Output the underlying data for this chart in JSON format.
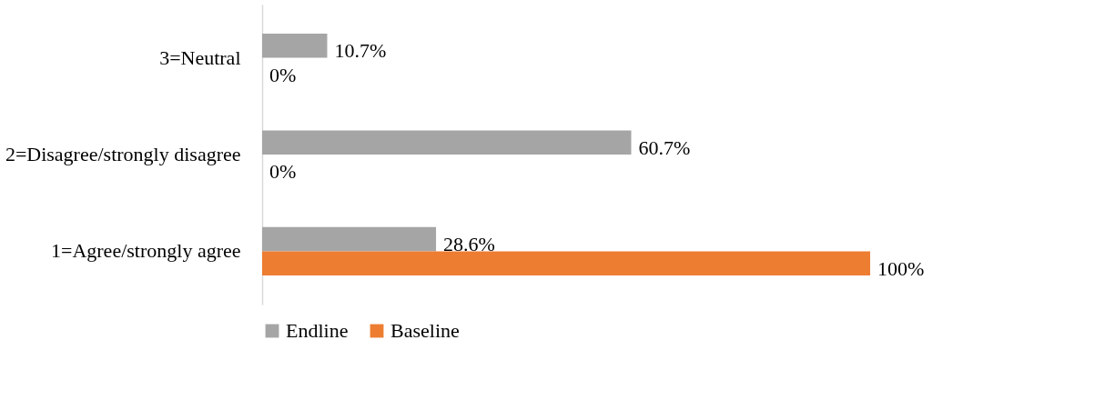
{
  "chart_data": {
    "type": "bar",
    "orientation": "horizontal",
    "categories": [
      "3=Neutral",
      "2=Disagree/strongly disagree",
      "1=Agree/strongly agree"
    ],
    "series": [
      {
        "name": "Endline",
        "color": "#a5a5a5",
        "values": [
          10.7,
          60.7,
          28.6
        ],
        "value_labels": [
          "10.7%",
          "60.7%",
          "28.6%"
        ]
      },
      {
        "name": "Baseline",
        "color": "#ed7d31",
        "values": [
          0,
          0,
          100
        ],
        "value_labels": [
          "0%",
          "0%",
          "100%"
        ]
      }
    ],
    "legend": "bottom",
    "grid": false
  }
}
